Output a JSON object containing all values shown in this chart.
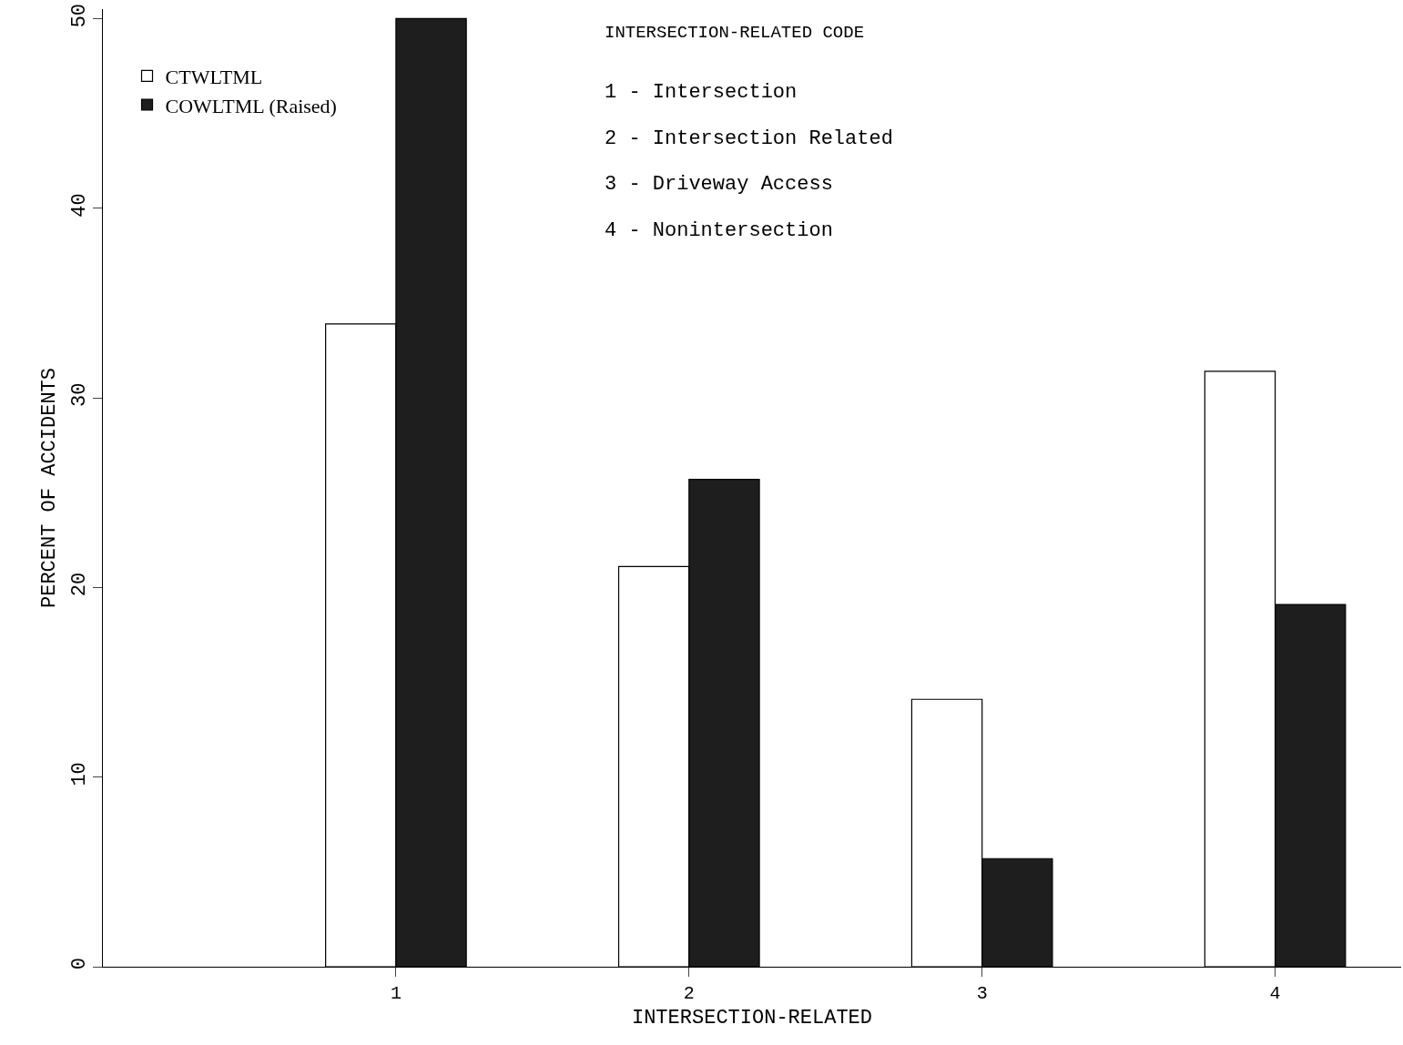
{
  "chart_data": {
    "type": "bar",
    "xlabel": "INTERSECTION-RELATED",
    "ylabel": "PERCENT OF ACCIDENTS",
    "x": [
      1,
      2,
      3,
      4
    ],
    "series": [
      {
        "name": "CTWLTML",
        "color": "#ffffff",
        "values": [
          33.9,
          21.1,
          14.1,
          31.4
        ]
      },
      {
        "name": "COWLTML (Raised)",
        "color": "#1e1e1e",
        "values": [
          50,
          25.7,
          5.7,
          19.1
        ]
      }
    ],
    "xlim": [
      0,
      4.43
    ],
    "xticks": [
      1,
      2,
      3,
      4
    ],
    "ylim": [
      0,
      50.5
    ],
    "yticks": [
      0,
      10,
      20,
      30,
      40,
      50
    ],
    "grid": false,
    "legend": "top left",
    "annotations": [
      "INTERSECTION-RELATED CODE",
      "1 - Intersection",
      "2 - Intersection Related",
      "3 - Driveway Access",
      "4 - Nonintersection"
    ]
  }
}
